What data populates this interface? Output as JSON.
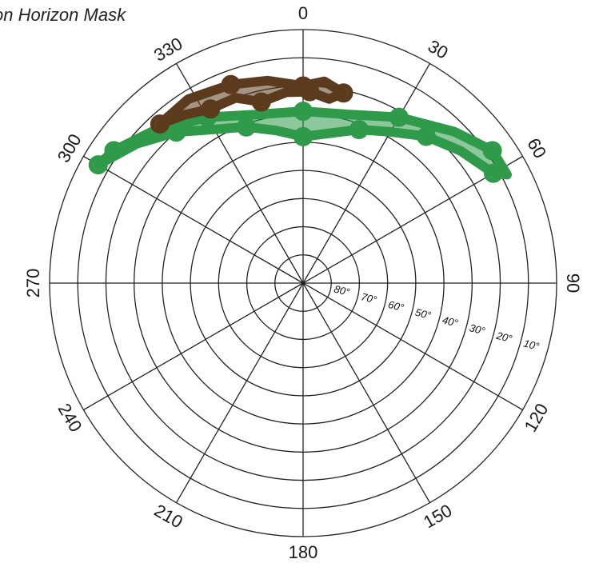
{
  "chart_data": {
    "type": "polar-sky-plot",
    "title": "on Horizon Mask",
    "azimuth_labels": [
      "0",
      "30",
      "60",
      "90",
      "120",
      "150",
      "180",
      "210",
      "240",
      "270",
      "300",
      "330"
    ],
    "azimuth_values": [
      0,
      30,
      60,
      90,
      120,
      150,
      180,
      210,
      240,
      270,
      300,
      330
    ],
    "altitude_labels": [
      "80°",
      "70°",
      "60°",
      "50°",
      "40°",
      "30°",
      "20°",
      "10°"
    ],
    "altitude_values": [
      80,
      70,
      60,
      50,
      40,
      30,
      20,
      10
    ],
    "altitude_range": [
      0,
      90
    ],
    "grid": true,
    "series": [
      {
        "color": "#2e9a4a",
        "outline": [
          [
            300,
            6
          ],
          [
            310,
            13
          ],
          [
            320,
            20
          ],
          [
            330,
            27
          ],
          [
            340,
            31
          ],
          [
            350,
            35
          ],
          [
            0,
            38
          ],
          [
            10,
            36
          ],
          [
            20,
            32
          ],
          [
            30,
            28
          ],
          [
            40,
            22
          ],
          [
            50,
            17
          ],
          [
            60,
            12
          ],
          [
            62,
            8
          ],
          [
            55,
            8
          ],
          [
            45,
            14
          ],
          [
            30,
            22
          ],
          [
            15,
            28
          ],
          [
            0,
            29
          ],
          [
            345,
            28
          ],
          [
            330,
            22
          ],
          [
            315,
            14
          ],
          [
            305,
            8
          ]
        ]
      },
      {
        "color": "#5b3a1e",
        "outline": [
          [
            318,
            14
          ],
          [
            325,
            17
          ],
          [
            332,
            20
          ],
          [
            340,
            20
          ],
          [
            347,
            24
          ],
          [
            355,
            22
          ],
          [
            2,
            22
          ],
          [
            8,
            24
          ],
          [
            12,
            21
          ],
          [
            6,
            18
          ],
          [
            0,
            20
          ],
          [
            350,
            17
          ],
          [
            340,
            15
          ],
          [
            328,
            13
          ]
        ]
      }
    ]
  }
}
